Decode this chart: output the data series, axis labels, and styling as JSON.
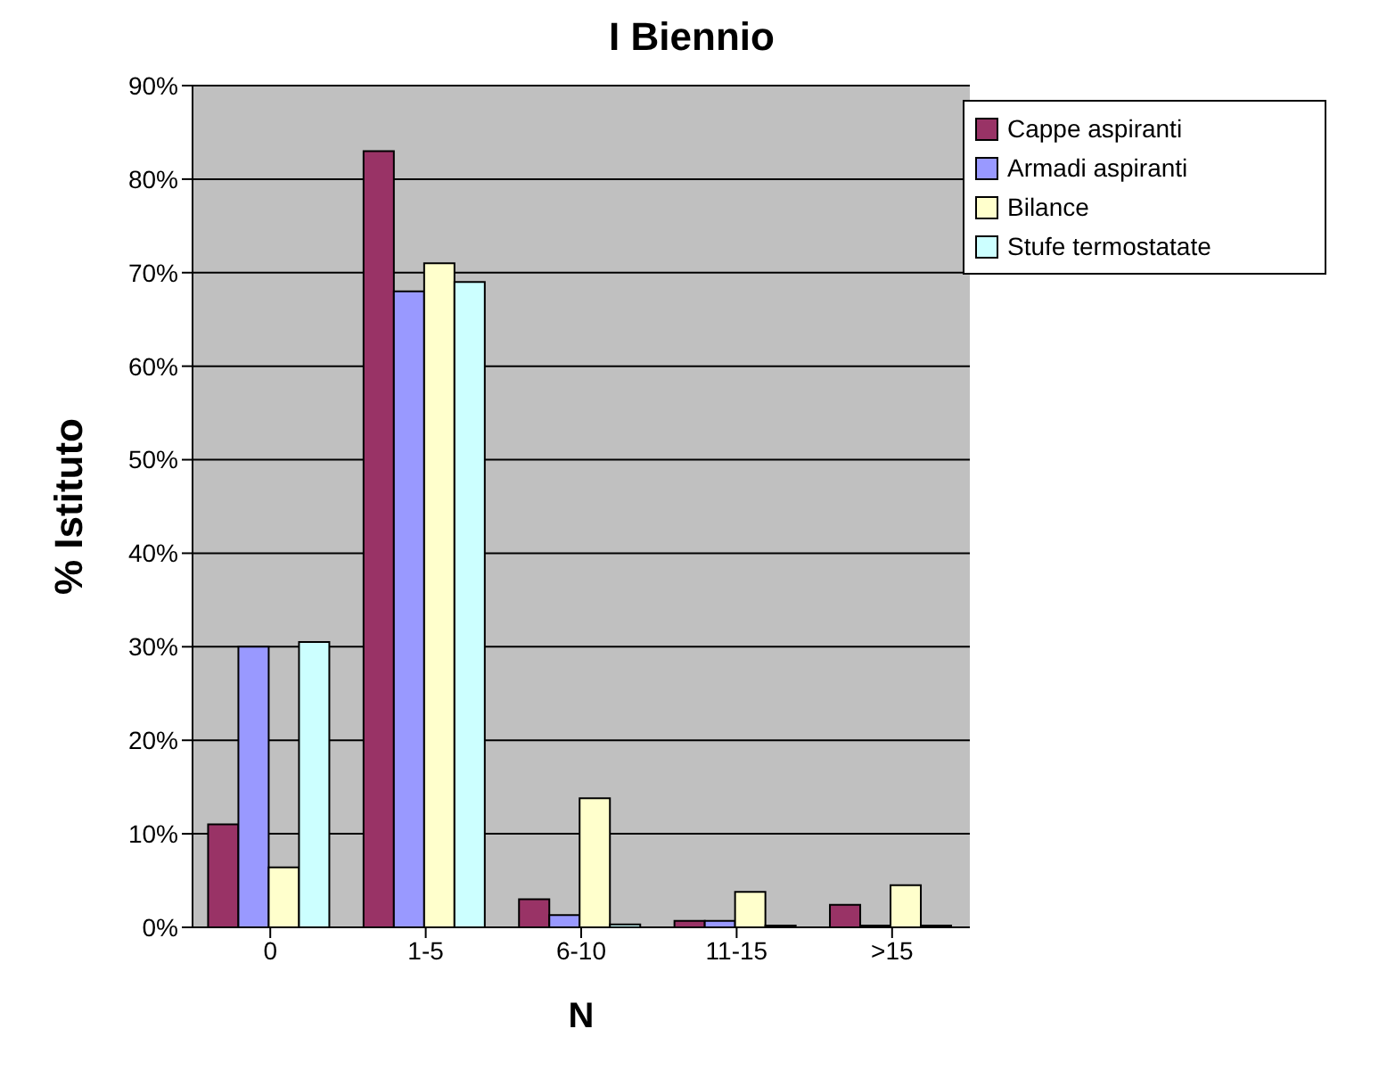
{
  "chart_data": {
    "type": "bar",
    "title": "I Biennio",
    "xlabel": "N",
    "ylabel": "% Istituto",
    "categories": [
      "0",
      "1-5",
      "6-10",
      "11-15",
      ">15"
    ],
    "series": [
      {
        "name": "Cappe aspiranti",
        "color": "#993366",
        "values": [
          11,
          83,
          3,
          0.7,
          2.4
        ]
      },
      {
        "name": "Armadi aspiranti",
        "color": "#9999ff",
        "values": [
          30,
          68,
          1.3,
          0.7,
          0.2
        ]
      },
      {
        "name": "Bilance",
        "color": "#ffffcc",
        "values": [
          6.4,
          71,
          13.8,
          3.8,
          4.5
        ]
      },
      {
        "name": "Stufe termostatate",
        "color": "#ccffff",
        "values": [
          30.5,
          69,
          0.3,
          0.2,
          0.2
        ]
      }
    ],
    "ylim": [
      0,
      90
    ],
    "yticks": [
      {
        "value": 0,
        "label": "0%"
      },
      {
        "value": 10,
        "label": "10%"
      },
      {
        "value": 20,
        "label": "20%"
      },
      {
        "value": 30,
        "label": "30%"
      },
      {
        "value": 40,
        "label": "40%"
      },
      {
        "value": 50,
        "label": "50%"
      },
      {
        "value": 60,
        "label": "60%"
      },
      {
        "value": 70,
        "label": "70%"
      },
      {
        "value": 80,
        "label": "80%"
      },
      {
        "value": 90,
        "label": "90%"
      }
    ],
    "grid": "y",
    "legend": "top right"
  }
}
